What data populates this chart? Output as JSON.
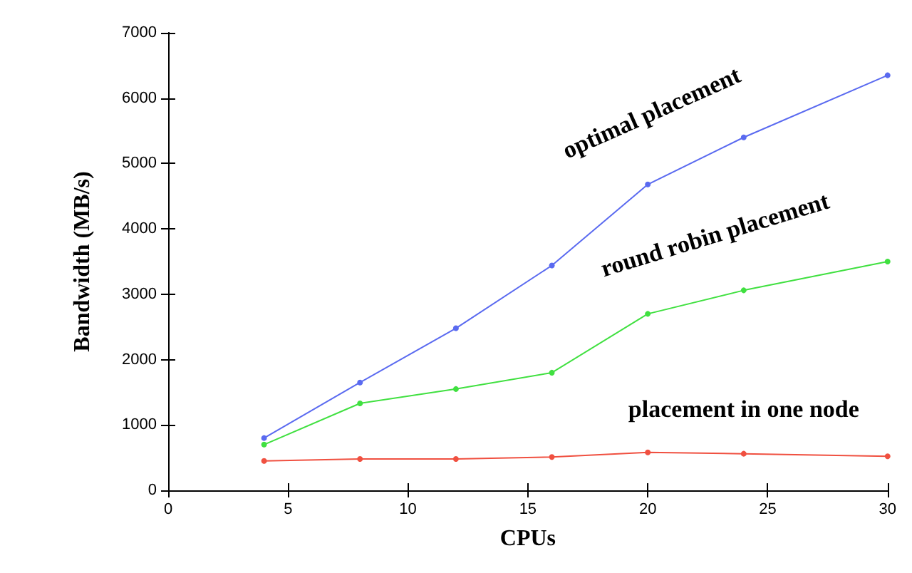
{
  "chart_data": {
    "type": "line",
    "xlabel": "CPUs",
    "ylabel": "Bandwidth (MB/s)",
    "x": [
      4,
      8,
      12,
      16,
      20,
      24,
      30
    ],
    "series": [
      {
        "name": "optimal placement",
        "color": "#5a6af0",
        "values": [
          800,
          1650,
          2480,
          3440,
          4680,
          5400,
          6350
        ]
      },
      {
        "name": "round robin placement",
        "color": "#40e040",
        "values": [
          700,
          1330,
          1550,
          1800,
          2700,
          3060,
          3500
        ]
      },
      {
        "name": "placement in one node",
        "color": "#f05040",
        "values": [
          450,
          480,
          480,
          510,
          580,
          560,
          520
        ]
      }
    ],
    "xlim": [
      0,
      30
    ],
    "xticks": [
      0,
      5,
      10,
      15,
      20,
      25,
      30
    ],
    "ylim": [
      0,
      7000
    ],
    "yticks": [
      0,
      1000,
      2000,
      3000,
      4000,
      5000,
      6000,
      7000
    ],
    "grid": false,
    "legend": false,
    "marker": "circle",
    "line_style": "solid"
  }
}
